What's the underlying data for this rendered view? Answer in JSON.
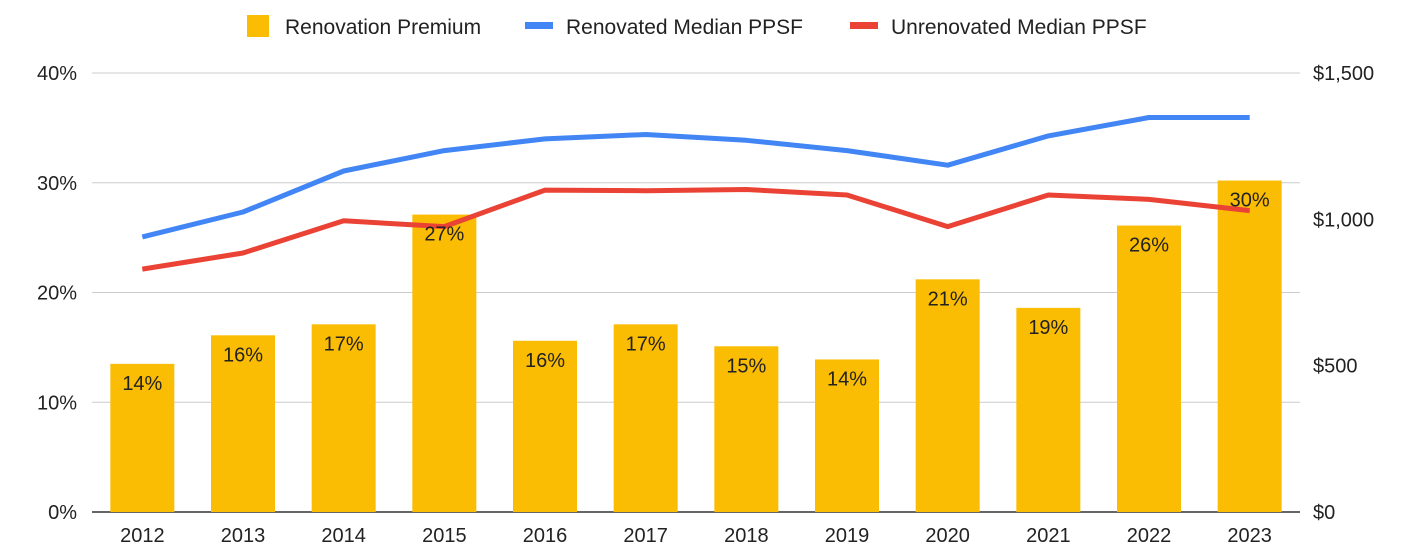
{
  "chart_data": {
    "type": "bar",
    "title": "",
    "xlabel": "",
    "ylabel": "",
    "categories": [
      "2012",
      "2013",
      "2014",
      "2015",
      "2016",
      "2017",
      "2018",
      "2019",
      "2020",
      "2021",
      "2022",
      "2023"
    ],
    "legend": {
      "placement": "top",
      "entries": [
        "Renovation Premium",
        "Renovated Median PPSF",
        "Unrenovated Median PPSF"
      ]
    },
    "left_axis": {
      "ylim": [
        0,
        40
      ],
      "ticks": [
        0,
        10,
        20,
        30,
        40
      ],
      "tick_labels": [
        "0%",
        "10%",
        "20%",
        "30%",
        "40%"
      ]
    },
    "right_axis": {
      "ylim": [
        0,
        1500
      ],
      "ticks": [
        0,
        500,
        1000,
        1500
      ],
      "tick_labels": [
        "$0",
        "$500",
        "$1,000",
        "$1,500"
      ]
    },
    "grid": true,
    "series": [
      {
        "name": "Renovation Premium",
        "type": "bar",
        "axis": "left",
        "color": "#FBBC04",
        "values": [
          13.5,
          16.1,
          17.1,
          27.1,
          15.6,
          17.1,
          15.1,
          13.9,
          21.2,
          18.6,
          26.1,
          30.2
        ],
        "data_labels": [
          "14%",
          "16%",
          "17%",
          "27%",
          "16%",
          "17%",
          "15%",
          "14%",
          "21%",
          "19%",
          "26%",
          "30%"
        ]
      },
      {
        "name": "Renovated Median PPSF",
        "type": "line",
        "axis": "right",
        "color": "#4285F4",
        "values": [
          940,
          1025,
          1165,
          1235,
          1275,
          1290,
          1270,
          1235,
          1185,
          1285,
          1348,
          1348
        ]
      },
      {
        "name": "Unrenovated Median PPSF",
        "type": "line",
        "axis": "right",
        "color": "#EA4335",
        "values": [
          830,
          885,
          995,
          975,
          1100,
          1098,
          1102,
          1083,
          975,
          1083,
          1068,
          1030
        ]
      }
    ]
  }
}
